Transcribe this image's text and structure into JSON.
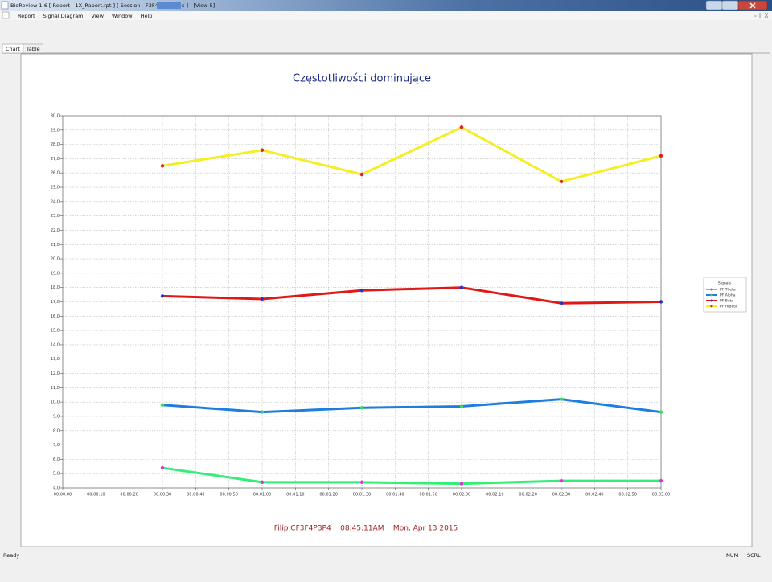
{
  "window": {
    "title": "BioReview 1.6  [ Report - 1X_Raport.rpt ] [ Session - F3F4P3P4",
    "title_tail": "s ] - [View 5]"
  },
  "menu": [
    "Report",
    "Signal Diagram",
    "View",
    "Window",
    "Help"
  ],
  "tabs": [
    "Chart",
    "Table"
  ],
  "status": {
    "text": "Ready",
    "indicators": [
      "NUM",
      "SCRL"
    ]
  },
  "chart_data": {
    "type": "line",
    "title": "Częstotliwości dominujące",
    "footer": "Filip CF3F4P3P4    08:45:11AM    Mon, Apr 13 2015",
    "legend_title": "Signals",
    "legend": "right",
    "grid": true,
    "x": [
      30,
      60,
      90,
      120,
      150,
      180
    ],
    "xlim": [
      0,
      180
    ],
    "xticks": [
      {
        "value": 0,
        "label": "00:00:00"
      },
      {
        "value": 10,
        "label": "00:00:10"
      },
      {
        "value": 20,
        "label": "00:00:20"
      },
      {
        "value": 30,
        "label": "00:00:30"
      },
      {
        "value": 40,
        "label": "00:00:40"
      },
      {
        "value": 50,
        "label": "00:00:50"
      },
      {
        "value": 60,
        "label": "00:01:00"
      },
      {
        "value": 70,
        "label": "00:01:10"
      },
      {
        "value": 80,
        "label": "00:01:20"
      },
      {
        "value": 90,
        "label": "00:01:30"
      },
      {
        "value": 100,
        "label": "00:01:40"
      },
      {
        "value": 110,
        "label": "00:01:50"
      },
      {
        "value": 120,
        "label": "00:02:00"
      },
      {
        "value": 130,
        "label": "00:02:10"
      },
      {
        "value": 140,
        "label": "00:02:20"
      },
      {
        "value": 150,
        "label": "00:02:30"
      },
      {
        "value": 160,
        "label": "00:02:40"
      },
      {
        "value": 170,
        "label": "00:02:50"
      },
      {
        "value": 180,
        "label": "00:03:00"
      }
    ],
    "ylim": [
      4,
      30
    ],
    "yticks": [
      {
        "value": 4,
        "label": "4,0"
      },
      {
        "value": 5,
        "label": "5,0"
      },
      {
        "value": 6,
        "label": "6,0"
      },
      {
        "value": 7,
        "label": "7,0"
      },
      {
        "value": 8,
        "label": "8,0"
      },
      {
        "value": 9,
        "label": "9,0"
      },
      {
        "value": 10,
        "label": "10,0"
      },
      {
        "value": 11,
        "label": "11,0"
      },
      {
        "value": 12,
        "label": "12,0"
      },
      {
        "value": 13,
        "label": "13,0"
      },
      {
        "value": 14,
        "label": "14,0"
      },
      {
        "value": 15,
        "label": "15,0"
      },
      {
        "value": 16,
        "label": "16,0"
      },
      {
        "value": 17,
        "label": "17,0"
      },
      {
        "value": 18,
        "label": "18,0"
      },
      {
        "value": 19,
        "label": "19,0"
      },
      {
        "value": 20,
        "label": "20,0"
      },
      {
        "value": 21,
        "label": "21,0"
      },
      {
        "value": 22,
        "label": "22,0"
      },
      {
        "value": 23,
        "label": "23,0"
      },
      {
        "value": 24,
        "label": "24,0"
      },
      {
        "value": 25,
        "label": "25,0"
      },
      {
        "value": 26,
        "label": "26,0"
      },
      {
        "value": 27,
        "label": "27,0"
      },
      {
        "value": 28,
        "label": "28,0"
      },
      {
        "value": 29,
        "label": "29,0"
      },
      {
        "value": 30,
        "label": "30,0"
      }
    ],
    "series": [
      {
        "name": "PF Theta",
        "color": "#33ee77",
        "marker_color": "#dd33dd",
        "values": [
          5.4,
          4.4,
          4.4,
          4.3,
          4.5,
          4.5
        ]
      },
      {
        "name": "PF Alpha",
        "color": "#1e7ee0",
        "marker_color": "#33dd55",
        "values": [
          9.8,
          9.3,
          9.6,
          9.7,
          10.2,
          9.3
        ]
      },
      {
        "name": "PF Beta",
        "color": "#e01818",
        "marker_color": "#2233cc",
        "values": [
          17.4,
          17.2,
          17.8,
          18.0,
          16.9,
          17.0
        ]
      },
      {
        "name": "PF HiBeta",
        "color": "#f4ee22",
        "marker_color": "#e02020",
        "values": [
          26.5,
          27.6,
          25.9,
          29.2,
          25.4,
          27.2
        ]
      }
    ]
  }
}
